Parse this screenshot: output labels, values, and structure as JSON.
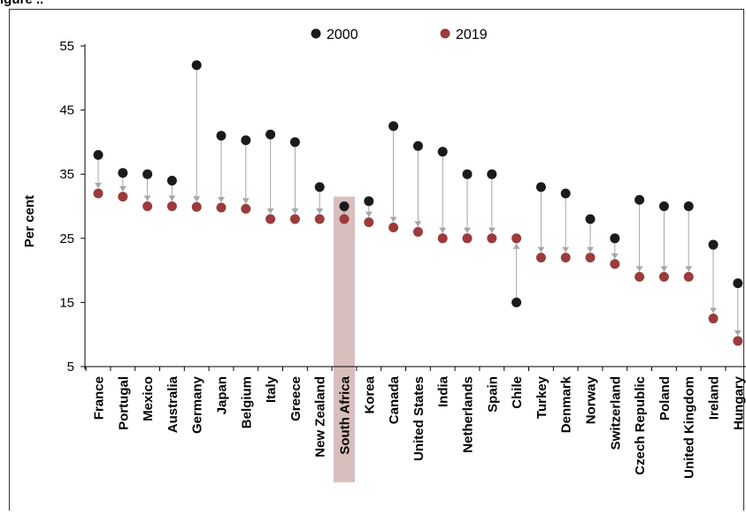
{
  "header_fragment": "igure ..",
  "colors": {
    "series_2000": "#1a1a1a",
    "series_2019": "#9b3b3b",
    "connector": "#a6a6a6",
    "highlight": "#c9a3a3"
  },
  "chart_data": {
    "type": "scatter",
    "title": "",
    "xlabel": "",
    "ylabel": "Per cent",
    "ylim": [
      5,
      55
    ],
    "yticks": [
      "55",
      "45",
      "35",
      "25",
      "15",
      "5"
    ],
    "grid": false,
    "legend_position": "top-center",
    "highlight_category": "South Africa",
    "categories": [
      "France",
      "Portugal",
      "Mexico",
      "Australia",
      "Germany",
      "Japan",
      "Belgium",
      "Italy",
      "Greece",
      "New Zealand",
      "South Africa",
      "Korea",
      "Canada",
      "United States",
      "India",
      "Netherlands",
      "Spain",
      "Chile",
      "Turkey",
      "Denmark",
      "Norway",
      "Switzerland",
      "Czech Republic",
      "Poland",
      "United Kingdom",
      "Ireland",
      "Hungary"
    ],
    "series": [
      {
        "name": "2000",
        "values": [
          38,
          35.2,
          35,
          34,
          52,
          41,
          40.3,
          41.2,
          40,
          33,
          30,
          30.8,
          42.5,
          39.4,
          38.5,
          35,
          35,
          15,
          33,
          32,
          28,
          25,
          31,
          30,
          30,
          24,
          18
        ]
      },
      {
        "name": "2019",
        "values": [
          32,
          31.5,
          30,
          30,
          29.9,
          29.8,
          29.6,
          28,
          28,
          28,
          28,
          27.5,
          26.7,
          26,
          25,
          25,
          25,
          25,
          22,
          22,
          22,
          21,
          19,
          19,
          19,
          12.5,
          9
        ]
      }
    ]
  }
}
